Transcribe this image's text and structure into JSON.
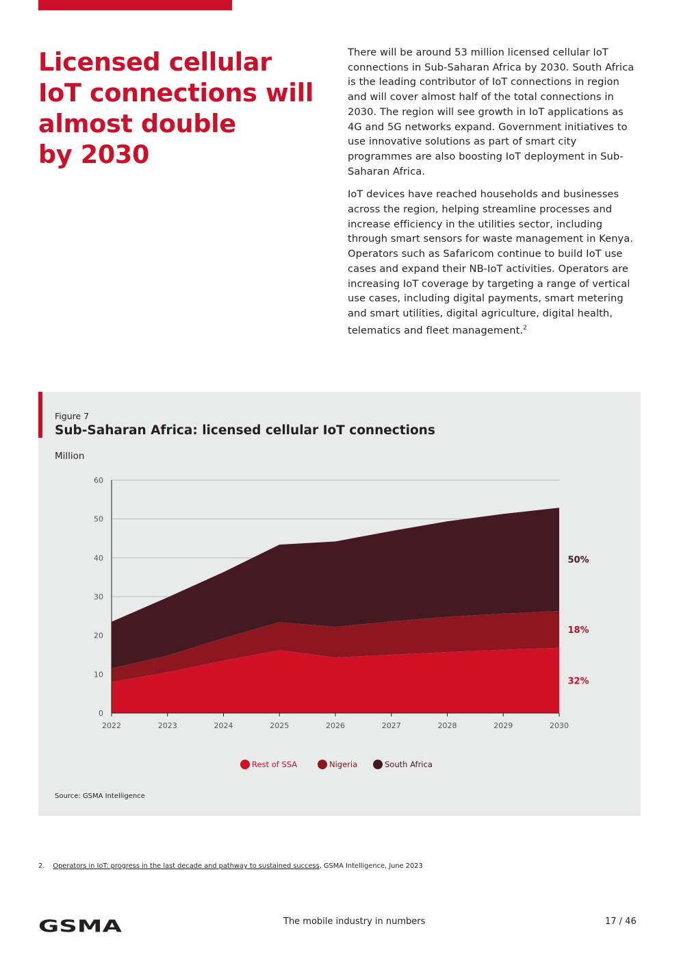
{
  "headline": [
    "Licensed cellular",
    "IoT connections will",
    "almost double",
    "by 2030"
  ],
  "body": {
    "p1": "There will be around 53 million licensed cellular IoT connections in Sub-Saharan Africa by 2030. South Africa is the leading contributor of IoT connections in region and will cover almost half of the total connections in 2030. The region will see growth in IoT applications as 4G and 5G networks expand. Government initiatives to use innovative solutions as part of smart city programmes are also boosting IoT deployment in Sub-Saharan Africa.",
    "p2": "IoT devices have reached households and businesses across the region, helping streamline processes and increase efficiency in the utilities sector, including through smart sensors for waste management in Kenya. Operators such as Safaricom continue to build IoT use cases and expand their NB-IoT activities. Operators are increasing IoT coverage by targeting a range of vertical use cases, including digital payments, smart metering and smart utilities, digital agriculture, digital health, telematics and fleet management.",
    "p2_sup": "2"
  },
  "figure": {
    "label": "Figure 7",
    "title": "Sub-Saharan Africa: licensed cellular IoT connections",
    "unit": "Million",
    "source": "Source: GSMA Intelligence"
  },
  "chart_data": {
    "type": "area",
    "stacked": true,
    "title": "Sub-Saharan Africa: licensed cellular IoT connections",
    "ylabel": "Million",
    "x": [
      "2022",
      "2023",
      "2024",
      "2025",
      "2026",
      "2027",
      "2028",
      "2029",
      "2030"
    ],
    "ylim": [
      0,
      60
    ],
    "yticks": [
      0,
      10,
      20,
      30,
      40,
      50,
      60
    ],
    "grid": true,
    "legend_position": "bottom",
    "series": [
      {
        "name": "Rest of SSA",
        "color": "#d01125",
        "values": [
          8,
          10.5,
          13.5,
          16.2,
          14.3,
          15,
          15.7,
          16.3,
          16.8
        ]
      },
      {
        "name": "Nigeria",
        "color": "#8e1620",
        "values": [
          3.5,
          4.3,
          5.8,
          7.2,
          7.9,
          8.6,
          9.1,
          9.3,
          9.5
        ]
      },
      {
        "name": "South Africa",
        "color": "#451921",
        "values": [
          12,
          15,
          17,
          20,
          22,
          23.3,
          24.6,
          25.7,
          26.6
        ]
      }
    ],
    "end_labels": [
      {
        "series": "South Africa",
        "text": "50%",
        "color": "#451921"
      },
      {
        "series": "Nigeria",
        "text": "18%",
        "color": "#b0172a"
      },
      {
        "series": "Rest of SSA",
        "text": "32%",
        "color": "#cc1029"
      }
    ]
  },
  "footnote": {
    "number": "2.",
    "link": "Operators in IoT: progress in the last decade and pathway to sustained success",
    "rest": ", GSMA Intelligence, June 2023"
  },
  "footer": {
    "logo_text": "GSMA",
    "center": "The mobile industry in numbers",
    "page": "17 / 46"
  },
  "colors": {
    "brand_red": "#cc1029",
    "figure_bg": "#e9eaea"
  }
}
